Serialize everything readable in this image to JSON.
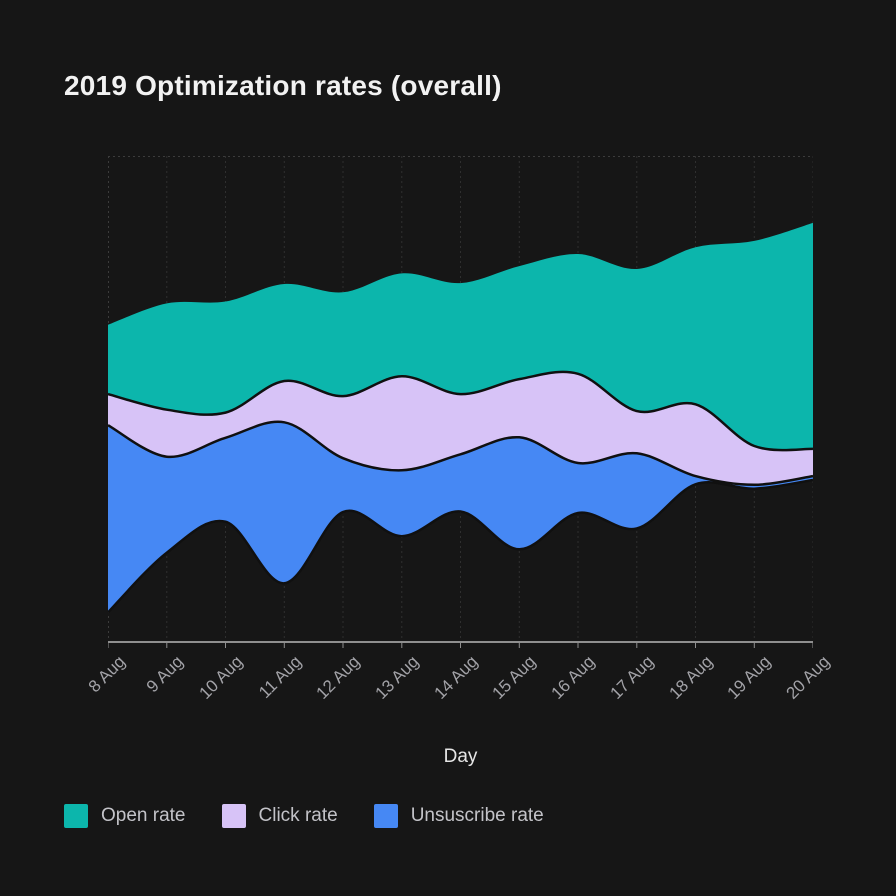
{
  "chart_data": {
    "type": "area",
    "variant": "streamgraph",
    "title": "2019 Optimization rates (overall)",
    "xlabel": "Day",
    "x": [
      "8 Aug",
      "9 Aug",
      "10 Aug",
      "11 Aug",
      "12 Aug",
      "13 Aug",
      "14 Aug",
      "15 Aug",
      "16 Aug",
      "17 Aug",
      "18 Aug",
      "19 Aug",
      "20 Aug"
    ],
    "series": [
      {
        "name": "Open rate",
        "color": "#0cb6ac",
        "values": [
          14.3,
          21.9,
          22.9,
          20.0,
          21.4,
          21.2,
          22.9,
          23.3,
          24.7,
          29.3,
          32.4,
          42.3,
          46.6
        ]
      },
      {
        "name": "Click rate",
        "color": "#d7c3f7",
        "values": [
          6.4,
          9.7,
          5.2,
          8.5,
          12.8,
          19.4,
          12.4,
          12.0,
          18.4,
          8.7,
          14.8,
          8.0,
          5.6
        ]
      },
      {
        "name": "Unsuscribe rate",
        "color": "#4688f4",
        "values": [
          38.6,
          19.8,
          17.3,
          33.2,
          11.1,
          13.6,
          11.8,
          23.1,
          10.3,
          15.5,
          1.7,
          0.8,
          0.8
        ]
      }
    ],
    "stream_top_offset_pct": [
      34.8,
      30.4,
      30.0,
      26.4,
      28.1,
      24.2,
      26.2,
      22.7,
      20.2,
      23.3,
      18.8,
      17.5,
      13.8
    ],
    "ylim": [
      0,
      100
    ],
    "grid": "vertical-dashed",
    "legend_position": "bottom-left"
  },
  "colors": {
    "background": "#161616",
    "title_text": "#f2f2f2",
    "tick_text": "#a2a2a7",
    "axis_title_text": "#e6e6e6",
    "legend_text": "#c3c3c8",
    "axis_line": "#8f8f8f",
    "gridline": "#2f2f2f",
    "band_stroke": "#101010"
  }
}
